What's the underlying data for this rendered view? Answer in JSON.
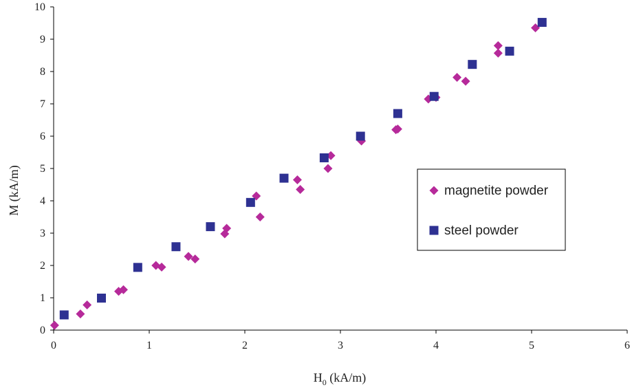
{
  "chart_data": {
    "type": "scatter",
    "xlabel_main": "H",
    "xlabel_sub": "0",
    "xlabel_units": " (kA/m)",
    "ylabel": "M (kA/m)",
    "xlim": [
      0,
      6
    ],
    "ylim": [
      0,
      10
    ],
    "x_ticks": [
      "0",
      "1",
      "2",
      "3",
      "4",
      "5",
      "6"
    ],
    "y_ticks": [
      "0",
      "1",
      "2",
      "3",
      "4",
      "5",
      "6",
      "7",
      "8",
      "9",
      "10"
    ],
    "grid": false,
    "legend_position": "right",
    "series": [
      {
        "name": "magnetite powder",
        "marker": "diamond",
        "color": "#b62a9a",
        "points": [
          [
            0.01,
            0.15
          ],
          [
            0.28,
            0.5
          ],
          [
            0.35,
            0.78
          ],
          [
            0.68,
            1.2
          ],
          [
            0.73,
            1.25
          ],
          [
            1.07,
            2.0
          ],
          [
            1.13,
            1.95
          ],
          [
            1.41,
            2.28
          ],
          [
            1.48,
            2.2
          ],
          [
            1.79,
            2.98
          ],
          [
            1.81,
            3.15
          ],
          [
            2.12,
            4.15
          ],
          [
            2.16,
            3.5
          ],
          [
            2.55,
            4.65
          ],
          [
            2.58,
            4.35
          ],
          [
            2.87,
            5.0
          ],
          [
            2.9,
            5.4
          ],
          [
            3.22,
            5.85
          ],
          [
            3.58,
            6.2
          ],
          [
            3.6,
            6.22
          ],
          [
            3.92,
            7.15
          ],
          [
            4.0,
            7.2
          ],
          [
            4.22,
            7.82
          ],
          [
            4.31,
            7.7
          ],
          [
            4.65,
            8.8
          ],
          [
            4.65,
            8.57
          ],
          [
            5.04,
            9.35
          ]
        ]
      },
      {
        "name": "steel powder",
        "marker": "square",
        "color": "#2e3192",
        "points": [
          [
            0.11,
            0.47
          ],
          [
            0.5,
            0.99
          ],
          [
            0.88,
            1.94
          ],
          [
            1.28,
            2.58
          ],
          [
            1.64,
            3.2
          ],
          [
            2.06,
            3.95
          ],
          [
            2.41,
            4.7
          ],
          [
            2.83,
            5.33
          ],
          [
            3.21,
            6.0
          ],
          [
            3.6,
            6.7
          ],
          [
            3.98,
            7.23
          ],
          [
            4.38,
            8.22
          ],
          [
            4.77,
            8.63
          ],
          [
            5.11,
            9.52
          ]
        ]
      }
    ]
  }
}
